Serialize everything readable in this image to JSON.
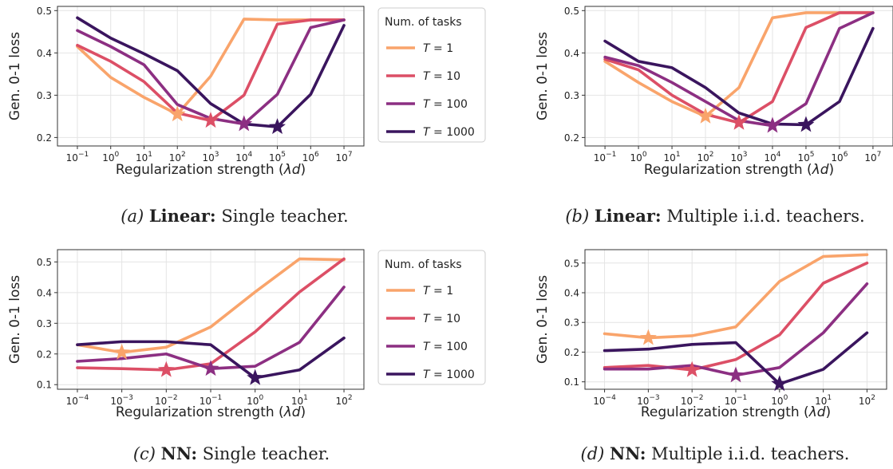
{
  "colors": {
    "T1": "#f9a46b",
    "T10": "#dc4f66",
    "T100": "#8c2f82",
    "T1000": "#3a155e"
  },
  "legend": {
    "title": "Num. of tasks",
    "entries": [
      {
        "label": "T = 1",
        "color": "#f9a46b"
      },
      {
        "label": "T = 10",
        "color": "#dc4f66"
      },
      {
        "label": "T = 100",
        "color": "#8c2f82"
      },
      {
        "label": "T = 1000",
        "color": "#3a155e"
      }
    ]
  },
  "chart_data": [
    {
      "type": "line",
      "caption": {
        "letter": "(a)",
        "bold": "Linear:",
        "rest": " Single teacher."
      },
      "ylabel": "Gen. 0-1 loss",
      "xlabel": "Regularization strength (λd)",
      "xscale": "log",
      "xticks": [
        -1,
        0,
        1,
        2,
        3,
        4,
        5,
        6,
        7
      ],
      "yticks": [
        0.2,
        0.3,
        0.4,
        0.5
      ],
      "ylim": [
        0.18,
        0.51
      ],
      "series": [
        {
          "name": "T = 1",
          "x": [
            -1,
            0,
            1,
            2,
            3,
            4,
            5,
            6,
            7
          ],
          "values": [
            0.415,
            0.342,
            0.295,
            0.255,
            0.345,
            0.48,
            0.478,
            0.478,
            0.478
          ],
          "best": 3
        },
        {
          "name": "T = 10",
          "x": [
            -1,
            0,
            1,
            2,
            3,
            4,
            5,
            6,
            7
          ],
          "values": [
            0.418,
            0.38,
            0.332,
            0.258,
            0.24,
            0.3,
            0.468,
            0.478,
            0.478
          ],
          "best": 4
        },
        {
          "name": "T = 100",
          "x": [
            -1,
            0,
            1,
            2,
            3,
            4,
            5,
            6,
            7
          ],
          "values": [
            0.453,
            0.415,
            0.372,
            0.278,
            0.245,
            0.232,
            0.302,
            0.46,
            0.478
          ],
          "best": 5
        },
        {
          "name": "T = 1000",
          "x": [
            -1,
            0,
            1,
            2,
            3,
            4,
            5,
            6,
            7
          ],
          "values": [
            0.483,
            0.435,
            0.398,
            0.358,
            0.28,
            0.232,
            0.225,
            0.302,
            0.465
          ],
          "best": 6
        }
      ]
    },
    {
      "type": "line",
      "caption": {
        "letter": "(b)",
        "bold": "Linear:",
        "rest": " Multiple i.i.d. teachers."
      },
      "ylabel": "Gen. 0-1 loss",
      "xlabel": "Regularization strength (λd)",
      "xscale": "log",
      "xticks": [
        -1,
        0,
        1,
        2,
        3,
        4,
        5,
        6,
        7
      ],
      "yticks": [
        0.2,
        0.3,
        0.4,
        0.5
      ],
      "ylim": [
        0.18,
        0.51
      ],
      "series": [
        {
          "name": "T = 1",
          "x": [
            -1,
            0,
            1,
            2,
            3,
            4,
            5,
            6,
            7
          ],
          "values": [
            0.38,
            0.33,
            0.285,
            0.25,
            0.318,
            0.483,
            0.495,
            0.495,
            0.495
          ],
          "best": 3
        },
        {
          "name": "T = 10",
          "x": [
            -1,
            0,
            1,
            2,
            3,
            4,
            5,
            6,
            7
          ],
          "values": [
            0.385,
            0.36,
            0.3,
            0.255,
            0.235,
            0.285,
            0.46,
            0.495,
            0.495
          ],
          "best": 4
        },
        {
          "name": "T = 100",
          "x": [
            -1,
            0,
            1,
            2,
            3,
            4,
            5,
            6,
            7
          ],
          "values": [
            0.39,
            0.37,
            0.33,
            0.285,
            0.24,
            0.228,
            0.28,
            0.458,
            0.495
          ],
          "best": 5
        },
        {
          "name": "T = 1000",
          "x": [
            -1,
            0,
            1,
            2,
            3,
            4,
            5,
            6,
            7
          ],
          "values": [
            0.428,
            0.38,
            0.365,
            0.318,
            0.258,
            0.232,
            0.23,
            0.285,
            0.458
          ],
          "best": 6
        }
      ]
    },
    {
      "type": "line",
      "caption": {
        "letter": "(c)",
        "bold": "NN:",
        "rest": " Single teacher."
      },
      "ylabel": "Gen. 0-1 loss",
      "xlabel": "Regularization strength (λd)",
      "xscale": "log",
      "xticks": [
        -4,
        -3,
        -2,
        -1,
        0,
        1,
        2
      ],
      "yticks": [
        0.1,
        0.2,
        0.3,
        0.4,
        0.5
      ],
      "ylim": [
        0.085,
        0.54
      ],
      "series": [
        {
          "name": "T = 1",
          "x": [
            -4,
            -3,
            -2,
            -1,
            0,
            1,
            2
          ],
          "values": [
            0.23,
            0.205,
            0.222,
            0.288,
            0.402,
            0.51,
            0.507
          ],
          "best": 1
        },
        {
          "name": "T = 10",
          "x": [
            -4,
            -3,
            -2,
            -1,
            0,
            1,
            2
          ],
          "values": [
            0.155,
            0.152,
            0.148,
            0.168,
            0.272,
            0.402,
            0.51
          ],
          "best": 2
        },
        {
          "name": "T = 100",
          "x": [
            -4,
            -3,
            -2,
            -1,
            0,
            1,
            2
          ],
          "values": [
            0.176,
            0.185,
            0.2,
            0.152,
            0.16,
            0.238,
            0.418
          ],
          "best": 3
        },
        {
          "name": "T = 1000",
          "x": [
            -4,
            -3,
            -2,
            -1,
            0,
            1,
            2
          ],
          "values": [
            0.23,
            0.24,
            0.24,
            0.23,
            0.122,
            0.148,
            0.252
          ],
          "best": 4
        }
      ]
    },
    {
      "type": "line",
      "caption": {
        "letter": "(d)",
        "bold": "NN:",
        "rest": " Multiple i.i.d. teachers."
      },
      "ylabel": "Gen. 0-1 loss",
      "xlabel": "Regularization strength (λd)",
      "xscale": "log",
      "xticks": [
        -4,
        -3,
        -2,
        -1,
        0,
        1,
        2
      ],
      "yticks": [
        0.1,
        0.2,
        0.3,
        0.4,
        0.5
      ],
      "ylim": [
        0.075,
        0.545
      ],
      "series": [
        {
          "name": "T = 1",
          "x": [
            -4,
            -3,
            -2,
            -1,
            0,
            1,
            2
          ],
          "values": [
            0.262,
            0.248,
            0.255,
            0.285,
            0.438,
            0.522,
            0.528
          ],
          "best": 1
        },
        {
          "name": "T = 10",
          "x": [
            -4,
            -3,
            -2,
            -1,
            0,
            1,
            2
          ],
          "values": [
            0.148,
            0.155,
            0.14,
            0.175,
            0.258,
            0.432,
            0.5
          ],
          "best": 2
        },
        {
          "name": "T = 100",
          "x": [
            -4,
            -3,
            -2,
            -1,
            0,
            1,
            2
          ],
          "values": [
            0.143,
            0.143,
            0.155,
            0.122,
            0.148,
            0.265,
            0.43
          ],
          "best": 3
        },
        {
          "name": "T = 1000",
          "x": [
            -4,
            -3,
            -2,
            -1,
            0,
            1,
            2
          ],
          "values": [
            0.205,
            0.21,
            0.226,
            0.232,
            0.093,
            0.142,
            0.265
          ],
          "best": 4
        }
      ]
    }
  ]
}
